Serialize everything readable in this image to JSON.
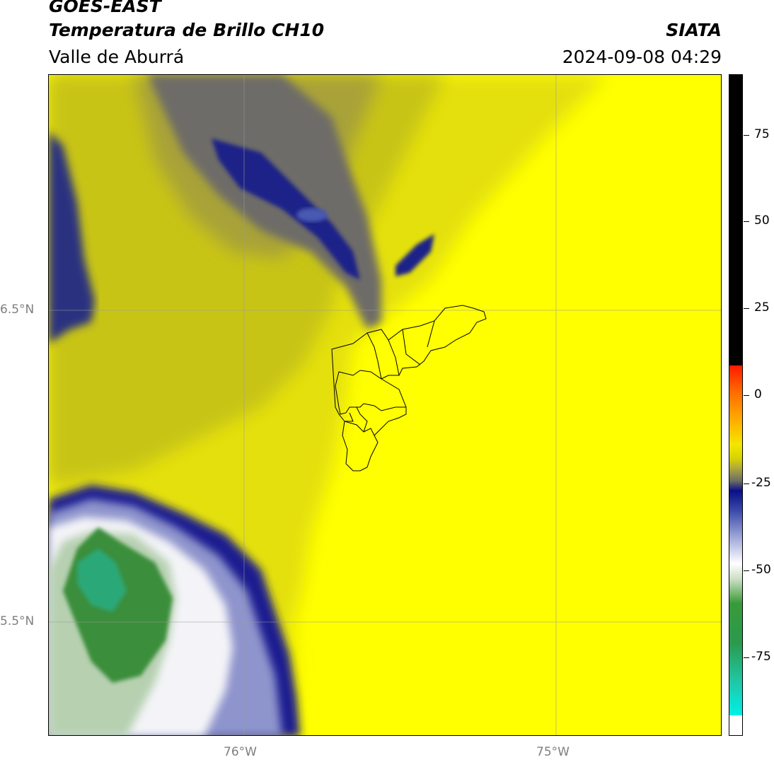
{
  "header": {
    "title_line1": "GOES-EAST",
    "title_line2": "Temperatura de Brillo CH10",
    "subtitle": "Valle de Aburrá",
    "agency": "SIATA",
    "timestamp": "2024-09-08 04:29"
  },
  "map": {
    "lat_ticks": [
      "6.5°N",
      "5.5°N"
    ],
    "lon_ticks": [
      "76°W",
      "75°W"
    ],
    "region_outline": "Valle de Aburrá municipalities",
    "colors": {
      "warm_yellow": "#ffff00",
      "olive": "#c8c400",
      "dark_grey": "#50505a",
      "navy": "#0a0e88",
      "white": "#ffffff",
      "green": "#2e8b3a",
      "teal": "#20a878"
    }
  },
  "colorbar": {
    "tick_labels": [
      "75",
      "50",
      "25",
      "0",
      "-25",
      "-50",
      "-75"
    ],
    "colors": {
      "black": "#000000",
      "red": "#ff1a00",
      "orange": "#ffa800",
      "yellow": "#f4e600",
      "navy": "#0a0e88",
      "white": "#ffffff",
      "green": "#3a9a3a",
      "cyan": "#00f0e8"
    }
  }
}
